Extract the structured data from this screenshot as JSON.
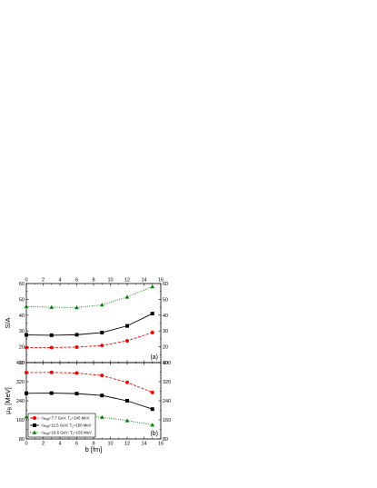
{
  "chart_data": [
    {
      "type": "line",
      "panel_label": "(a)",
      "ylabel": "S/A",
      "x_top_ticks": [
        "0",
        "2",
        "4",
        "6",
        "8",
        "10",
        "12",
        "14",
        "16"
      ],
      "y_left_ticks": [
        "10",
        "20",
        "30",
        "40",
        "50",
        "60"
      ],
      "y_right_ticks": [
        "10",
        "20",
        "30",
        "40",
        "50",
        "60"
      ],
      "xlim": [
        0,
        16
      ],
      "ylim": [
        10,
        60
      ],
      "x": [
        0,
        3,
        6,
        9,
        12,
        15
      ],
      "series": [
        {
          "values": [
            19.5,
            19.5,
            19.8,
            20.8,
            23.8,
            29.0
          ],
          "color": "#ff0000",
          "marker": "circle",
          "line": "dashed"
        },
        {
          "values": [
            27.5,
            27.3,
            27.6,
            29.0,
            33.2,
            41.0
          ],
          "color": "#000000",
          "marker": "square",
          "line": "solid"
        },
        {
          "values": [
            45.5,
            45.0,
            44.8,
            46.5,
            51.5,
            58.0
          ],
          "color": "#008000",
          "marker": "triangle",
          "line": "dotted"
        }
      ]
    },
    {
      "type": "line",
      "panel_label": "(b)",
      "ylabel": "μB [MeV]",
      "xlabel": "b [fm]",
      "x_bottom_ticks": [
        "0",
        "2",
        "4",
        "6",
        "8",
        "10",
        "12",
        "14",
        "16"
      ],
      "y_left_ticks": [
        "80",
        "160",
        "240",
        "320",
        "400"
      ],
      "y_right_ticks": [
        "80",
        "160",
        "240",
        "320",
        "400"
      ],
      "xlim": [
        0,
        16
      ],
      "ylim": [
        80,
        400
      ],
      "x": [
        0,
        3,
        6,
        9,
        12,
        15
      ],
      "series": [
        {
          "values": [
            358,
            359,
            356,
            346,
            317,
            275
          ],
          "color": "#ff0000",
          "marker": "circle",
          "line": "dashed"
        },
        {
          "values": [
            271,
            272,
            270,
            262,
            240,
            205
          ],
          "color": "#000000",
          "marker": "square",
          "line": "solid"
        },
        {
          "values": [
            173,
            176,
            176,
            171,
            157,
            139
          ],
          "color": "#008000",
          "marker": "triangle",
          "line": "dotted"
        }
      ],
      "legend": {
        "placement": "bottom-left",
        "entries": [
          {
            "color": "#ff0000",
            "marker": "circle",
            "line": "dashed",
            "sqrt": "√s",
            "sub1": "NN",
            "mid": "=7.7 GeV; T",
            "sub2": "c",
            "tail": "=145 MeV"
          },
          {
            "color": "#000000",
            "marker": "square",
            "line": "solid",
            "sqrt": "√s",
            "sub1": "NN",
            "mid": "=11.5 GeV; T",
            "sub2": "c",
            "tail": "=150 MeV"
          },
          {
            "color": "#008000",
            "marker": "triangle",
            "line": "dotted",
            "sqrt": "√s",
            "sub1": "NN",
            "mid": "=19.6 GeV; T",
            "sub2": "c",
            "tail": "=155 MeV"
          }
        ]
      }
    }
  ]
}
